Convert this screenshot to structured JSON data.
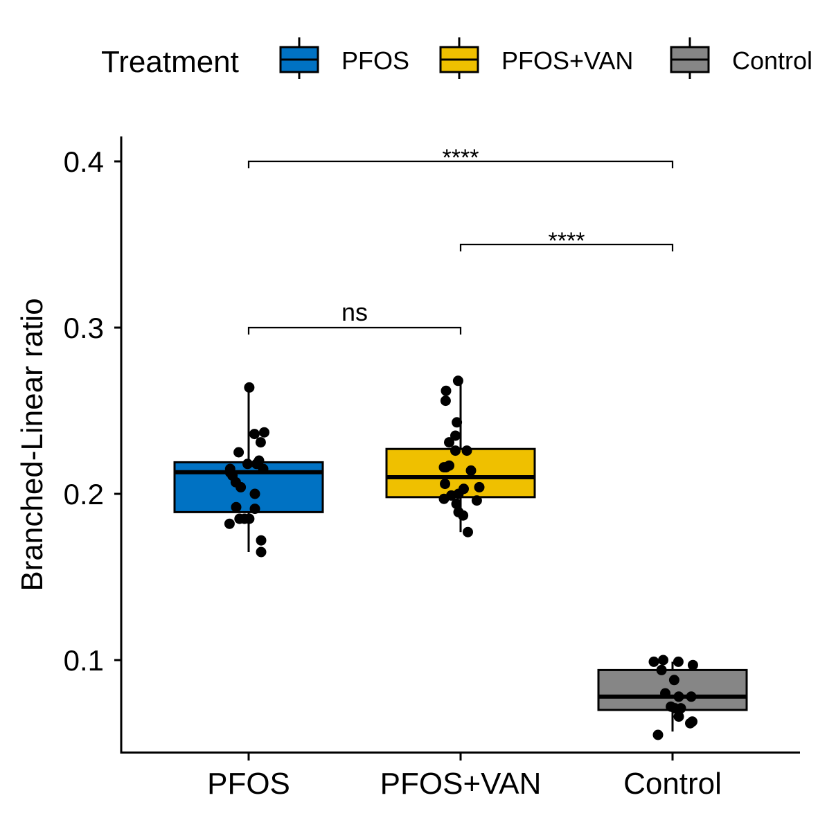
{
  "chart_data": {
    "type": "box",
    "title": "",
    "xlabel": "",
    "ylabel": "Branched-Linear ratio",
    "ylim": [
      0.045,
      0.415
    ],
    "yticks": [
      0.1,
      0.2,
      0.3,
      0.4
    ],
    "ytick_labels": [
      "0.1",
      "0.2",
      "0.3",
      "0.4"
    ],
    "categories": [
      "PFOS",
      "PFOS+VAN",
      "Control"
    ],
    "legend": {
      "title": "Treatment",
      "position": "top",
      "entries": [
        {
          "label": "PFOS",
          "color": "#0072C3"
        },
        {
          "label": "PFOS+VAN",
          "color": "#EFC000"
        },
        {
          "label": "Control",
          "color": "#868686"
        }
      ]
    },
    "series": [
      {
        "category": "PFOS",
        "color": "#0072C3",
        "box": {
          "min": 0.165,
          "q1": 0.189,
          "median": 0.213,
          "q3": 0.219,
          "max": 0.263
        },
        "points": [
          [
            0.003,
            0.264
          ],
          [
            -0.048,
            0.225
          ],
          [
            -0.038,
            0.204
          ],
          [
            0.028,
            0.236
          ],
          [
            0.075,
            0.237
          ],
          [
            -0.089,
            0.215
          ],
          [
            -0.09,
            0.213
          ],
          [
            -0.078,
            0.211
          ],
          [
            -0.062,
            0.207
          ],
          [
            -0.005,
            0.218
          ],
          [
            0.038,
            0.218
          ],
          [
            0.05,
            0.22
          ],
          [
            0.07,
            0.215
          ],
          [
            0.058,
            0.231
          ],
          [
            0.03,
            0.2
          ],
          [
            -0.06,
            0.192
          ],
          [
            0.03,
            0.191
          ],
          [
            -0.092,
            0.182
          ],
          [
            -0.044,
            0.185
          ],
          [
            -0.02,
            0.185
          ],
          [
            0.003,
            0.185
          ],
          [
            0.06,
            0.172
          ],
          [
            0.06,
            0.165
          ]
        ]
      },
      {
        "category": "PFOS+VAN",
        "color": "#EFC000",
        "box": {
          "min": 0.177,
          "q1": 0.198,
          "median": 0.21,
          "q3": 0.227,
          "max": 0.267
        },
        "points": [
          [
            -0.012,
            0.268
          ],
          [
            -0.07,
            0.262
          ],
          [
            -0.072,
            0.256
          ],
          [
            -0.018,
            0.243
          ],
          [
            -0.025,
            0.235
          ],
          [
            -0.055,
            0.231
          ],
          [
            -0.025,
            0.226
          ],
          [
            0.03,
            0.226
          ],
          [
            -0.07,
            0.216
          ],
          [
            -0.055,
            0.217
          ],
          [
            -0.08,
            0.216
          ],
          [
            0.05,
            0.214
          ],
          [
            -0.075,
            0.206
          ],
          [
            0.015,
            0.203
          ],
          [
            0.09,
            0.204
          ],
          [
            -0.01,
            0.2
          ],
          [
            -0.045,
            0.199
          ],
          [
            -0.08,
            0.197
          ],
          [
            0.078,
            0.196
          ],
          [
            -0.02,
            0.194
          ],
          [
            -0.01,
            0.189
          ],
          [
            0.012,
            0.187
          ],
          [
            0.035,
            0.177
          ]
        ]
      },
      {
        "category": "Control",
        "color": "#868686",
        "box": {
          "min": 0.057,
          "q1": 0.07,
          "median": 0.078,
          "q3": 0.094,
          "max": 0.099
        },
        "points": [
          [
            -0.09,
            0.099
          ],
          [
            -0.045,
            0.1
          ],
          [
            0.028,
            0.099
          ],
          [
            0.098,
            0.097
          ],
          [
            -0.053,
            0.094
          ],
          [
            0.008,
            0.088
          ],
          [
            -0.035,
            0.08
          ],
          [
            0.03,
            0.078
          ],
          [
            0.09,
            0.078
          ],
          [
            -0.008,
            0.072
          ],
          [
            0.012,
            0.071
          ],
          [
            0.04,
            0.071
          ],
          [
            0.03,
            0.066
          ],
          [
            0.085,
            0.062
          ],
          [
            0.095,
            0.063
          ],
          [
            -0.07,
            0.055
          ]
        ]
      }
    ],
    "comparisons": [
      {
        "from": "PFOS",
        "to": "PFOS+VAN",
        "y": 0.3,
        "label": "ns"
      },
      {
        "from": "PFOS+VAN",
        "to": "Control",
        "y": 0.35,
        "label": "****"
      },
      {
        "from": "PFOS",
        "to": "Control",
        "y": 0.4,
        "label": "****"
      }
    ]
  }
}
